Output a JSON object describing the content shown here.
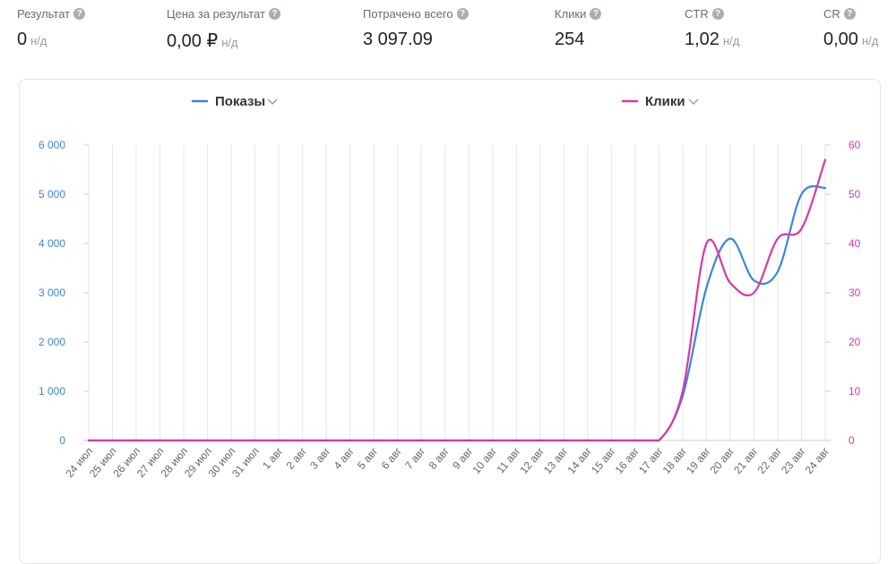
{
  "metrics": [
    {
      "label": "Результат",
      "value": "0",
      "unit": "н/д"
    },
    {
      "label": "Цена за результат",
      "value": "0,00 ₽",
      "unit": "н/д"
    },
    {
      "label": "Потрачено всего",
      "value": "3 097.09",
      "unit": ""
    },
    {
      "label": "Клики",
      "value": "254",
      "unit": ""
    },
    {
      "label": "CTR",
      "value": "1,02",
      "unit": "н/д"
    },
    {
      "label": "CR",
      "value": "0,00",
      "unit": "н/д"
    }
  ],
  "help_glyph": "?",
  "colors": {
    "impressions": "#3d85d8",
    "clicks": "#d63aa8",
    "grid": "#e4e6ea"
  },
  "chart_data": {
    "type": "line",
    "categories": [
      "24 июл",
      "25 июл",
      "26 июл",
      "27 июл",
      "28 июл",
      "29 июл",
      "30 июл",
      "31 июл",
      "1 авг",
      "2 авг",
      "3 авг",
      "4 авг",
      "5 авг",
      "6 авг",
      "7 авг",
      "8 авг",
      "9 авг",
      "10 авг",
      "11 авг",
      "12 авг",
      "13 авг",
      "14 авг",
      "15 авг",
      "16 авг",
      "17 авг",
      "18 авг",
      "19 авг",
      "20 авг",
      "21 авг",
      "22 авг",
      "23 авг",
      "24 авг"
    ],
    "series": [
      {
        "name": "Показы",
        "axis": "left",
        "color": "#3d85d8",
        "values": [
          0,
          0,
          0,
          0,
          0,
          0,
          0,
          0,
          0,
          0,
          0,
          0,
          0,
          0,
          0,
          0,
          0,
          0,
          0,
          0,
          0,
          0,
          0,
          0,
          0,
          900,
          3100,
          4100,
          3250,
          3430,
          5000,
          5130
        ]
      },
      {
        "name": "Клики",
        "axis": "right",
        "color": "#d63aa8",
        "values": [
          0,
          0,
          0,
          0,
          0,
          0,
          0,
          0,
          0,
          0,
          0,
          0,
          0,
          0,
          0,
          0,
          0,
          0,
          0,
          0,
          0,
          0,
          0,
          0,
          0,
          10,
          40,
          32,
          30,
          41,
          43,
          57
        ]
      }
    ],
    "y_left": {
      "min": 0,
      "max": 6000,
      "ticks": [
        0,
        1000,
        2000,
        3000,
        4000,
        5000,
        6000
      ],
      "tick_labels": [
        "0",
        "1 000",
        "2 000",
        "3 000",
        "4 000",
        "5 000",
        "6 000"
      ]
    },
    "y_right": {
      "min": 0,
      "max": 60,
      "ticks": [
        0,
        10,
        20,
        30,
        40,
        50,
        60
      ],
      "tick_labels": [
        "0",
        "10",
        "20",
        "30",
        "40",
        "50",
        "60"
      ]
    },
    "grid": "vertical",
    "legend": [
      "Показы",
      "Клики"
    ]
  }
}
